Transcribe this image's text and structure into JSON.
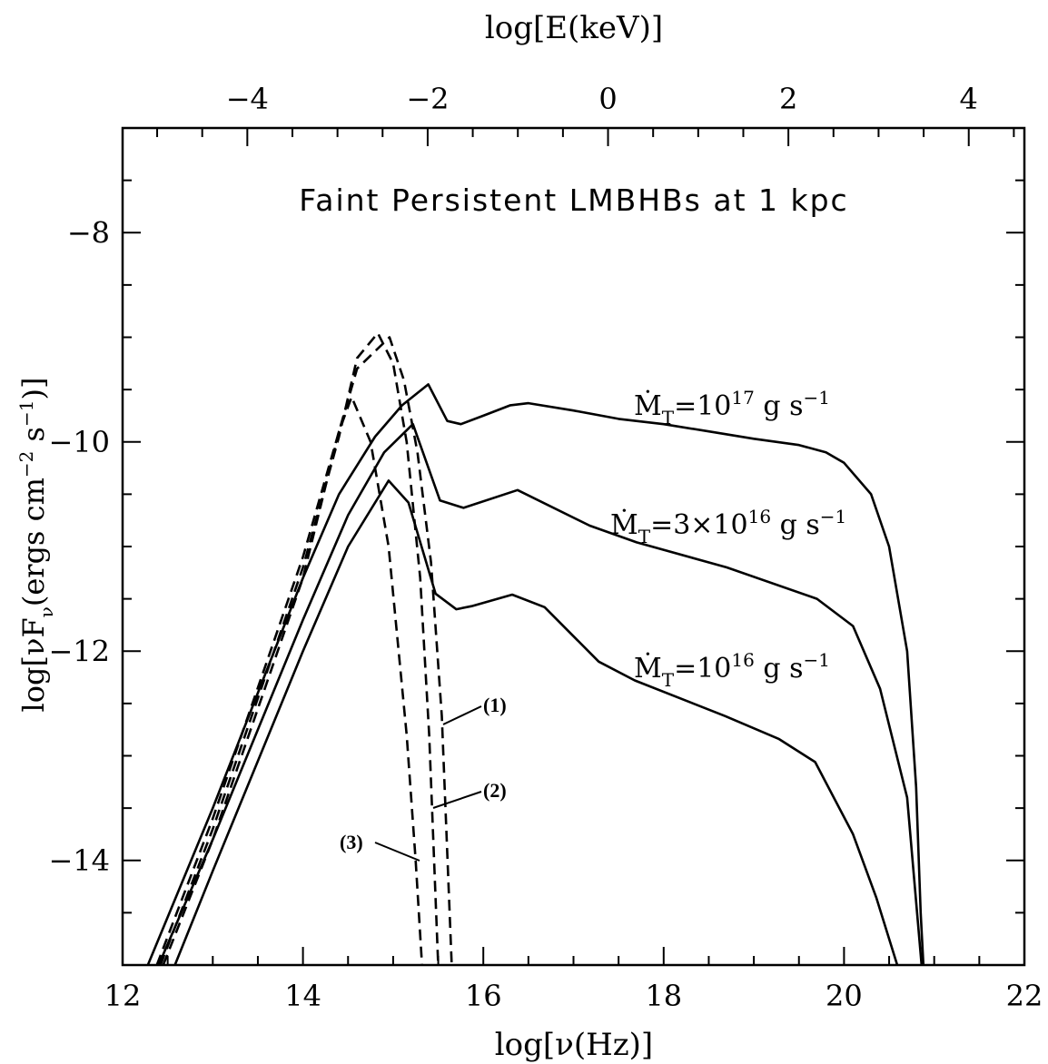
{
  "chart_data": {
    "type": "line",
    "title": "Faint Persistent LMBHBs at 1 kpc",
    "xlabel": "log[ν(Hz)]",
    "x2label": "log[E(keV)]",
    "ylabel": [
      "log[νF",
      "ν",
      "(ergs cm",
      "−2",
      " s",
      "−1",
      ")]"
    ],
    "xlim": [
      12,
      22
    ],
    "xticks": [
      12,
      14,
      16,
      18,
      20,
      22
    ],
    "xminor": [
      12.5,
      13,
      13.5,
      14.5,
      15,
      15.5,
      16.5,
      17,
      17.5,
      18.5,
      19,
      19.5,
      20.5,
      21,
      21.5
    ],
    "x2lim": [
      -5.383,
      4.617
    ],
    "x2ticks": [
      {
        "value": -4,
        "label": "−4"
      },
      {
        "value": -2,
        "label": "−2"
      },
      0,
      2,
      4
    ],
    "x2minor": [
      -5,
      -4.5,
      -3.5,
      -3,
      -2.5,
      -1.5,
      -1,
      -0.5,
      0.5,
      1,
      1.5,
      2.5,
      3,
      3.5,
      4.5
    ],
    "ylim": [
      -15,
      -7
    ],
    "yticks": [
      {
        "value": -8,
        "label": "−8"
      },
      {
        "value": -10,
        "label": "−10"
      },
      {
        "value": -12,
        "label": "−12"
      },
      {
        "value": -14,
        "label": "−14"
      }
    ],
    "yminor": [
      -14.5,
      -13.5,
      -13,
      -12.5,
      -11.5,
      -11,
      -10.5,
      -9.5,
      -9,
      -8.5,
      -7.5
    ],
    "series": [
      {
        "color": "#000000",
        "style": "solid",
        "x": [
          12.28,
          13,
          13.5,
          14,
          14.4,
          14.8,
          15.1,
          15.39,
          15.6,
          15.75,
          16,
          16.3,
          16.5,
          17,
          17.5,
          18,
          18.5,
          19,
          19.5,
          19.8,
          20,
          20.3,
          20.5,
          20.7,
          20.8,
          20.85,
          20.88
        ],
        "values": [
          -15,
          -13.5,
          -12.4,
          -11.3,
          -10.5,
          -9.95,
          -9.65,
          -9.45,
          -9.8,
          -9.83,
          -9.75,
          -9.65,
          -9.63,
          -9.7,
          -9.78,
          -9.83,
          -9.9,
          -9.97,
          -10.03,
          -10.1,
          -10.2,
          -10.5,
          -11,
          -12,
          -13.3,
          -14.5,
          -15
        ]
      },
      {
        "color": "#000000",
        "style": "solid",
        "x": [
          12.4,
          13,
          14,
          14.5,
          14.9,
          15.22,
          15.52,
          15.78,
          16.38,
          17.18,
          17.7,
          18.7,
          19.7,
          20.1,
          20.4,
          20.7,
          20.86
        ],
        "values": [
          -15,
          -13.8,
          -11.7,
          -10.7,
          -10.1,
          -9.83,
          -10.56,
          -10.63,
          -10.46,
          -10.8,
          -10.96,
          -11.2,
          -11.5,
          -11.76,
          -12.36,
          -13.4,
          -15
        ]
      },
      {
        "color": "#000000",
        "style": "solid",
        "x": [
          12.58,
          13,
          14,
          14.5,
          14.95,
          15.17,
          15.47,
          15.7,
          15.87,
          16.32,
          16.68,
          17.28,
          17.68,
          18.68,
          19.28,
          19.68,
          20.1,
          20.36,
          20.59
        ],
        "values": [
          -15,
          -14.1,
          -12,
          -11,
          -10.37,
          -10.58,
          -11.45,
          -11.6,
          -11.57,
          -11.46,
          -11.58,
          -12.1,
          -12.28,
          -12.62,
          -12.84,
          -13.06,
          -13.75,
          -14.36,
          -15
        ]
      },
      {
        "color": "#000000",
        "style": "dashed",
        "x": [
          12.38,
          13,
          14,
          14.4,
          14.6,
          14.96,
          15.12,
          15.27,
          15.42,
          15.54,
          15.65
        ],
        "values": [
          -15,
          -13.6,
          -11.1,
          -9.9,
          -9.3,
          -9.0,
          -9.41,
          -10.1,
          -11.15,
          -12.62,
          -15
        ]
      },
      {
        "color": "#000000",
        "style": "dashed",
        "x": [
          12.42,
          13,
          14,
          14.4,
          14.6,
          14.83,
          15,
          15.15,
          15.3,
          15.4,
          15.5
        ],
        "values": [
          -15,
          -13.7,
          -11.2,
          -9.95,
          -9.2,
          -8.96,
          -9.25,
          -10.0,
          -11.3,
          -12.8,
          -15
        ]
      },
      {
        "color": "#000000",
        "style": "dashed",
        "x": [
          12.45,
          13,
          14,
          14.4,
          14.54,
          14.75,
          14.95,
          15.15,
          15.25,
          15.32
        ],
        "values": [
          -15,
          -13.8,
          -11.3,
          -9.9,
          -9.57,
          -10.0,
          -11.0,
          -12.8,
          -14.0,
          -15
        ]
      }
    ],
    "annotations": [
      [
        "Ṁ",
        "T",
        "=10",
        "17",
        " g s",
        "−1"
      ],
      [
        "Ṁ",
        "T",
        "=3×10",
        "16",
        " g s",
        "−1"
      ],
      [
        "Ṁ",
        "T",
        "=10",
        "16",
        " g s",
        "−1"
      ],
      "(1)",
      "(2)",
      "(3)"
    ]
  }
}
